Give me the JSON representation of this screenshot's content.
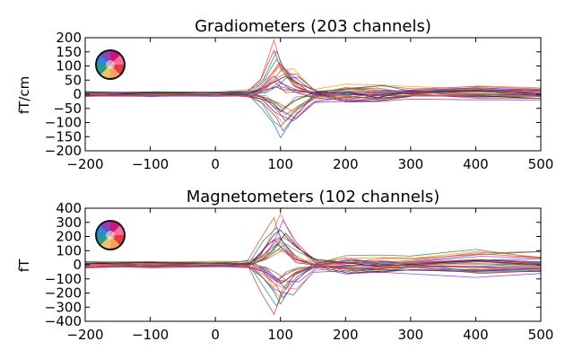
{
  "chart_data": [
    {
      "type": "line",
      "title": "Gradiometers (203 channels)",
      "xlabel": "",
      "ylabel": "fT/cm",
      "xlim": [
        -200,
        500
      ],
      "ylim": [
        -200,
        200
      ],
      "xticks": [
        -200,
        -100,
        0,
        100,
        200,
        300,
        400,
        500
      ],
      "yticks": [
        -200,
        -150,
        -100,
        -50,
        0,
        50,
        100,
        150,
        200
      ],
      "channel_count": 203,
      "peaks_approx": [
        {
          "x": 90,
          "y": 185
        },
        {
          "x": 100,
          "y": -155
        }
      ],
      "series_colors": [
        "#e8432a",
        "#d22d2d",
        "#f2683c",
        "#1f6e8c",
        "#2e8b57",
        "#8a2be2",
        "#c71585",
        "#ff8c00",
        "#1a1a1a",
        "#2f4f9f"
      ],
      "series": [
        {
          "x": [
            -200,
            -100,
            0,
            50,
            70,
            90,
            100,
            120,
            150,
            200,
            250,
            300,
            400,
            500
          ],
          "values": [
            2,
            3,
            1,
            5,
            60,
            185,
            120,
            40,
            5,
            20,
            15,
            10,
            15,
            10
          ]
        },
        {
          "x": [
            -200,
            -100,
            0,
            50,
            70,
            90,
            100,
            120,
            150,
            200,
            250,
            300,
            400,
            500
          ],
          "values": [
            -1,
            0,
            2,
            2,
            50,
            160,
            100,
            30,
            0,
            15,
            25,
            10,
            20,
            5
          ]
        },
        {
          "x": [
            -200,
            -100,
            0,
            50,
            70,
            90,
            100,
            120,
            150,
            200,
            250,
            300,
            400,
            500
          ],
          "values": [
            3,
            1,
            0,
            10,
            30,
            80,
            110,
            60,
            5,
            -5,
            10,
            5,
            10,
            0
          ]
        },
        {
          "x": [
            -200,
            -100,
            0,
            50,
            70,
            90,
            100,
            120,
            150,
            200,
            250,
            300,
            400,
            500
          ],
          "values": [
            0,
            -2,
            1,
            -5,
            -40,
            -110,
            -155,
            -80,
            -10,
            5,
            0,
            5,
            -5,
            0
          ]
        },
        {
          "x": [
            -200,
            -100,
            0,
            50,
            70,
            90,
            100,
            120,
            150,
            200,
            250,
            300,
            400,
            500
          ],
          "values": [
            -2,
            -1,
            0,
            -8,
            -30,
            -90,
            -120,
            -60,
            -5,
            -10,
            -15,
            -5,
            -10,
            -8
          ]
        },
        {
          "x": [
            -200,
            -100,
            0,
            50,
            70,
            90,
            100,
            120,
            150,
            200,
            250,
            300,
            400,
            500
          ],
          "values": [
            5,
            2,
            -1,
            5,
            20,
            40,
            20,
            10,
            0,
            -25,
            -20,
            -10,
            -15,
            -20
          ]
        },
        {
          "x": [
            -200,
            -100,
            0,
            50,
            70,
            90,
            100,
            120,
            150,
            200,
            250,
            300,
            400,
            500
          ],
          "values": [
            -3,
            0,
            2,
            -3,
            -10,
            -60,
            -80,
            -100,
            -30,
            -20,
            -10,
            -5,
            -10,
            -5
          ]
        },
        {
          "x": [
            -200,
            -100,
            0,
            50,
            70,
            90,
            100,
            120,
            150,
            200,
            250,
            300,
            400,
            500
          ],
          "values": [
            1,
            1,
            0,
            0,
            10,
            60,
            80,
            90,
            20,
            30,
            40,
            20,
            25,
            15
          ]
        },
        {
          "x": [
            -200,
            -100,
            0,
            50,
            70,
            90,
            100,
            120,
            150,
            200,
            250,
            300,
            400,
            500
          ],
          "values": [
            0,
            2,
            1,
            2,
            -15,
            -40,
            -60,
            -20,
            0,
            5,
            -5,
            10,
            5,
            0
          ]
        },
        {
          "x": [
            -200,
            -100,
            0,
            50,
            70,
            90,
            100,
            120,
            150,
            200,
            250,
            300,
            400,
            500
          ],
          "values": [
            -1,
            -2,
            0,
            3,
            25,
            70,
            50,
            15,
            -5,
            -15,
            5,
            15,
            30,
            20
          ]
        }
      ]
    },
    {
      "type": "line",
      "title": "Magnetometers (102 channels)",
      "xlabel": "",
      "ylabel": "fT",
      "xlim": [
        -200,
        500
      ],
      "ylim": [
        -400,
        400
      ],
      "xticks": [
        -200,
        -100,
        0,
        100,
        200,
        300,
        400,
        500
      ],
      "yticks": [
        -400,
        -300,
        -200,
        -100,
        0,
        100,
        200,
        300,
        400
      ],
      "channel_count": 102,
      "peaks_approx": [
        {
          "x": 105,
          "y": 370
        },
        {
          "x": 80,
          "y": -340
        }
      ],
      "series_colors": [
        "#e8432a",
        "#d22d2d",
        "#f2683c",
        "#1f6e8c",
        "#2e8b57",
        "#8a2be2",
        "#c71585",
        "#ff8c00",
        "#1a1a1a",
        "#2f4f9f"
      ],
      "series": [
        {
          "x": [
            -200,
            -100,
            0,
            50,
            70,
            90,
            100,
            120,
            150,
            200,
            250,
            300,
            400,
            500
          ],
          "values": [
            5,
            10,
            0,
            20,
            200,
            320,
            200,
            60,
            10,
            40,
            20,
            30,
            80,
            100
          ]
        },
        {
          "x": [
            -200,
            -100,
            0,
            50,
            70,
            90,
            100,
            120,
            150,
            200,
            250,
            300,
            400,
            500
          ],
          "values": [
            -10,
            0,
            5,
            -20,
            -200,
            -340,
            -220,
            -80,
            -10,
            -40,
            -50,
            -20,
            -30,
            -40
          ]
        },
        {
          "x": [
            -200,
            -100,
            0,
            50,
            70,
            90,
            100,
            120,
            150,
            200,
            250,
            300,
            400,
            500
          ],
          "values": [
            0,
            5,
            10,
            10,
            60,
            250,
            370,
            180,
            20,
            10,
            0,
            20,
            30,
            10
          ]
        },
        {
          "x": [
            -200,
            -100,
            0,
            50,
            70,
            90,
            100,
            120,
            150,
            200,
            250,
            300,
            400,
            500
          ],
          "values": [
            0,
            -5,
            0,
            -10,
            -60,
            -200,
            -280,
            -120,
            -10,
            -30,
            -20,
            -10,
            -40,
            -20
          ]
        },
        {
          "x": [
            -200,
            -100,
            0,
            50,
            70,
            90,
            100,
            120,
            150,
            200,
            250,
            300,
            400,
            500
          ],
          "values": [
            10,
            5,
            0,
            10,
            40,
            120,
            150,
            50,
            10,
            50,
            80,
            60,
            100,
            60
          ]
        },
        {
          "x": [
            -200,
            -100,
            0,
            50,
            70,
            90,
            100,
            120,
            150,
            200,
            250,
            300,
            400,
            500
          ],
          "values": [
            -5,
            0,
            5,
            -5,
            -40,
            -120,
            -150,
            -80,
            -20,
            -60,
            -40,
            -50,
            -80,
            -60
          ]
        },
        {
          "x": [
            -200,
            -100,
            0,
            50,
            70,
            90,
            100,
            120,
            150,
            200,
            250,
            300,
            400,
            500
          ],
          "values": [
            0,
            10,
            0,
            5,
            100,
            180,
            120,
            30,
            0,
            20,
            40,
            10,
            20,
            30
          ]
        },
        {
          "x": [
            -200,
            -100,
            0,
            50,
            70,
            90,
            100,
            120,
            150,
            200,
            250,
            300,
            400,
            500
          ],
          "values": [
            0,
            -10,
            -5,
            0,
            -50,
            -150,
            -100,
            -40,
            0,
            -20,
            -10,
            0,
            -10,
            -5
          ]
        },
        {
          "x": [
            -200,
            -100,
            0,
            50,
            70,
            90,
            100,
            120,
            150,
            200,
            250,
            300,
            400,
            500
          ],
          "values": [
            20,
            10,
            0,
            15,
            80,
            200,
            250,
            150,
            30,
            10,
            5,
            0,
            15,
            10
          ]
        },
        {
          "x": [
            -200,
            -100,
            0,
            50,
            70,
            90,
            100,
            120,
            150,
            200,
            250,
            300,
            400,
            500
          ],
          "values": [
            -15,
            -5,
            0,
            -10,
            -70,
            -160,
            -180,
            -200,
            -40,
            -30,
            -20,
            -25,
            -30,
            -25
          ]
        }
      ]
    }
  ]
}
